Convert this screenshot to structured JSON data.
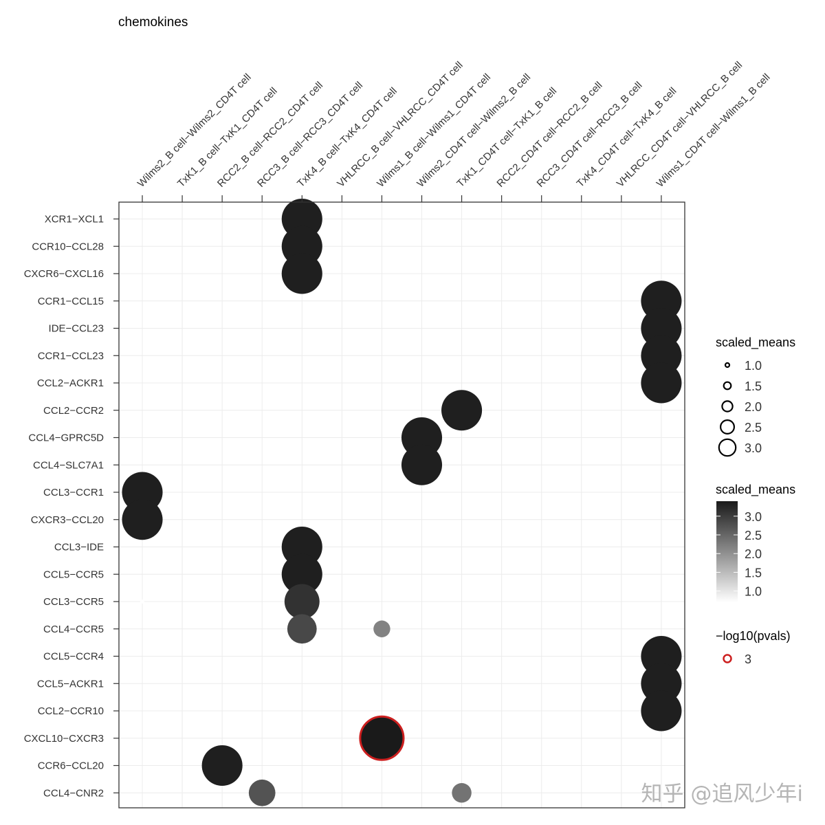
{
  "chart_data": {
    "type": "scatter",
    "title": "chemokines",
    "columns": [
      "Wilms2_B cell−Wilms2_CD4T cell",
      "TxK1_B cell−TxK1_CD4T cell",
      "RCC2_B cell−RCC2_CD4T cell",
      "RCC3_B cell−RCC3_CD4T cell",
      "TxK4_B cell−TxK4_CD4T cell",
      "VHLRCC_B cell−VHLRCC_CD4T cell",
      "Wilms1_B cell−Wilms1_CD4T cell",
      "Wilms2_CD4T cell−Wilms2_B cell",
      "TxK1_CD4T cell−TxK1_B cell",
      "RCC2_CD4T cell−RCC2_B cell",
      "RCC3_CD4T cell−RCC3_B cell",
      "TxK4_CD4T cell−TxK4_B cell",
      "VHLRCC_CD4T cell−VHLRCC_B cell",
      "Wilms1_CD4T cell−Wilms1_B cell"
    ],
    "rows": [
      "XCR1−XCL1",
      "CCR10−CCL28",
      "CXCR6−CXCL16",
      "CCR1−CCL15",
      "IDE−CCL23",
      "CCR1−CCL23",
      "CCL2−ACKR1",
      "CCL2−CCR2",
      "CCL4−GPRC5D",
      "CCL4−SLC7A1",
      "CCL3−CCR1",
      "CXCR3−CCL20",
      "CCL3−IDE",
      "CCL5−CCR5",
      "CCL3−CCR5",
      "CCL4−CCR5",
      "CCL5−CCR4",
      "CCL5−ACKR1",
      "CCL2−CCR10",
      "CXCL10−CXCR3",
      "CCR6−CCL20",
      "CCL4−CNR2"
    ],
    "points": [
      {
        "row": 0,
        "col": 4,
        "scaled_means": 3.3
      },
      {
        "row": 1,
        "col": 4,
        "scaled_means": 3.3
      },
      {
        "row": 2,
        "col": 4,
        "scaled_means": 3.3
      },
      {
        "row": 3,
        "col": 13,
        "scaled_means": 3.3
      },
      {
        "row": 4,
        "col": 13,
        "scaled_means": 3.3
      },
      {
        "row": 5,
        "col": 13,
        "scaled_means": 3.3
      },
      {
        "row": 6,
        "col": 13,
        "scaled_means": 3.3
      },
      {
        "row": 7,
        "col": 8,
        "scaled_means": 3.3
      },
      {
        "row": 8,
        "col": 7,
        "scaled_means": 3.3
      },
      {
        "row": 9,
        "col": 7,
        "scaled_means": 3.3
      },
      {
        "row": 10,
        "col": 0,
        "scaled_means": 3.3
      },
      {
        "row": 11,
        "col": 0,
        "scaled_means": 3.3
      },
      {
        "row": 12,
        "col": 4,
        "scaled_means": 3.3
      },
      {
        "row": 13,
        "col": 4,
        "scaled_means": 3.3
      },
      {
        "row": 14,
        "col": 0,
        "scaled_means": 0.7
      },
      {
        "row": 14,
        "col": 4,
        "scaled_means": 2.9
      },
      {
        "row": 15,
        "col": 4,
        "scaled_means": 2.5
      },
      {
        "row": 15,
        "col": 6,
        "scaled_means": 1.6
      },
      {
        "row": 16,
        "col": 13,
        "scaled_means": 3.3
      },
      {
        "row": 17,
        "col": 13,
        "scaled_means": 3.3
      },
      {
        "row": 18,
        "col": 13,
        "scaled_means": 3.3
      },
      {
        "row": 19,
        "col": 6,
        "scaled_means": 3.4,
        "neg_log10_pval": 3
      },
      {
        "row": 20,
        "col": 2,
        "scaled_means": 3.3
      },
      {
        "row": 21,
        "col": 3,
        "scaled_means": 2.3
      },
      {
        "row": 21,
        "col": 8,
        "scaled_means": 1.8
      }
    ],
    "size_legend": {
      "title": "scaled_means",
      "values": [
        1.0,
        1.5,
        2.0,
        2.5,
        3.0
      ],
      "labels": [
        "1.0",
        "1.5",
        "2.0",
        "2.5",
        "3.0"
      ]
    },
    "color_legend": {
      "title": "scaled_means",
      "range": [
        0.7,
        3.4
      ],
      "ticks": [
        3.0,
        2.5,
        2.0,
        1.5,
        1.0
      ],
      "labels": [
        "3.0",
        "2.5",
        "2.0",
        "1.5",
        "1.0"
      ],
      "low_color": "#ffffff",
      "high_color": "#1a1a1a"
    },
    "pval_legend": {
      "title": "−log10(pvals)",
      "values": [
        3
      ],
      "labels": [
        "3"
      ],
      "color": "#cc1f1f"
    }
  },
  "watermark": "知乎 @追风少年i"
}
